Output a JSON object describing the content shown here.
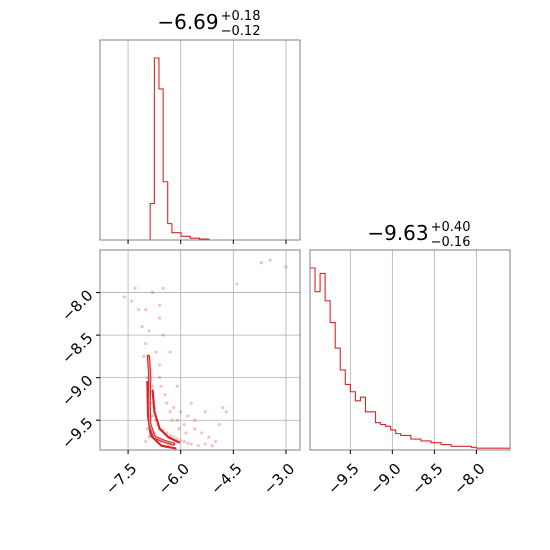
{
  "chart_data": [
    {
      "type": "histogram",
      "panel": "top-left",
      "title_main": "−6.69",
      "title_sup": "+0.18",
      "title_sub": "−0.12",
      "color": "#d62728",
      "xlim": [
        -8.3,
        -2.6
      ],
      "grid": true,
      "xticks": [
        -7.5,
        -6.0,
        -4.5,
        -3.0
      ],
      "bin_edges": [
        -8.3,
        -7.45,
        -7.0,
        -6.87,
        -6.75,
        -6.62,
        -6.5,
        -6.37,
        -6.25,
        -6.12,
        -5.99,
        -5.86,
        -5.73,
        -5.6,
        -5.47,
        -5.34,
        -5.2,
        -2.6
      ],
      "counts": [
        0,
        0,
        0,
        0.2,
        1.0,
        0.83,
        0.32,
        0.09,
        0.04,
        0.04,
        0.02,
        0.02,
        0.01,
        0.01,
        0.005,
        0.005,
        0
      ]
    },
    {
      "type": "histogram",
      "panel": "bottom-right",
      "title_main": "−9.63",
      "title_sup": "+0.40",
      "title_sub": "−0.16",
      "color": "#d62728",
      "xlim": [
        -9.98,
        -7.6
      ],
      "grid": true,
      "xticks": [
        -9.5,
        -9.0,
        -8.5,
        -8.0
      ],
      "xticklabels": [
        "−9.5",
        "−9.0",
        "−8.5",
        "−8.0"
      ],
      "bin_edges": [
        -9.98,
        -9.92,
        -9.86,
        -9.8,
        -9.74,
        -9.68,
        -9.62,
        -9.56,
        -9.5,
        -9.44,
        -9.38,
        -9.32,
        -9.26,
        -9.2,
        -9.14,
        -9.08,
        -9.02,
        -8.96,
        -8.9,
        -8.84,
        -8.78,
        -8.72,
        -8.66,
        -8.6,
        -8.54,
        -8.48,
        -8.42,
        -8.36,
        -8.3,
        -8.24,
        -8.18,
        -8.12,
        -8.06,
        -8.0,
        -7.9,
        -7.8,
        -7.7,
        -7.6
      ],
      "counts": [
        1.0,
        0.87,
        0.97,
        0.82,
        0.7,
        0.56,
        0.44,
        0.36,
        0.32,
        0.27,
        0.29,
        0.21,
        0.21,
        0.15,
        0.14,
        0.13,
        0.11,
        0.09,
        0.08,
        0.08,
        0.06,
        0.06,
        0.05,
        0.05,
        0.04,
        0.04,
        0.03,
        0.03,
        0.02,
        0.02,
        0.02,
        0.02,
        0.015,
        0.01,
        0.01,
        0.01,
        0.01
      ]
    },
    {
      "type": "scatter",
      "panel": "bottom-left",
      "color": "#d62728",
      "xlim": [
        -8.3,
        -2.6
      ],
      "ylim": [
        -9.85,
        -7.5
      ],
      "grid": true,
      "xticks": [
        -7.5,
        -6.0,
        -4.5,
        -3.0
      ],
      "xticklabels": [
        "−7.5",
        "−6.0",
        "−4.5",
        "−3.0"
      ],
      "yticks": [
        -8.0,
        -8.5,
        -9.0,
        -9.5
      ],
      "yticklabels": [
        "−8.0",
        "−8.5",
        "−9.0",
        "−9.5"
      ],
      "points": [
        [
          -6.9,
          -8.8
        ],
        [
          -6.85,
          -8.9
        ],
        [
          -6.95,
          -9.0
        ],
        [
          -6.8,
          -9.1
        ],
        [
          -6.9,
          -9.2
        ],
        [
          -6.85,
          -9.3
        ],
        [
          -6.75,
          -9.35
        ],
        [
          -6.8,
          -9.45
        ],
        [
          -6.7,
          -9.5
        ],
        [
          -6.65,
          -9.55
        ],
        [
          -6.6,
          -9.6
        ],
        [
          -6.5,
          -9.62
        ],
        [
          -6.4,
          -9.65
        ],
        [
          -6.3,
          -9.68
        ],
        [
          -6.2,
          -9.7
        ],
        [
          -6.1,
          -9.72
        ],
        [
          -6.0,
          -9.74
        ],
        [
          -5.9,
          -9.75
        ],
        [
          -5.8,
          -9.77
        ],
        [
          -5.7,
          -9.78
        ],
        [
          -7.0,
          -8.6
        ],
        [
          -7.1,
          -8.4
        ],
        [
          -7.2,
          -8.2
        ],
        [
          -6.6,
          -8.3
        ],
        [
          -6.5,
          -8.5
        ],
        [
          -6.7,
          -8.7
        ],
        [
          -6.6,
          -9.0
        ],
        [
          -6.45,
          -9.2
        ],
        [
          -6.3,
          -9.4
        ],
        [
          -6.1,
          -9.5
        ],
        [
          -5.9,
          -9.55
        ],
        [
          -5.6,
          -9.6
        ],
        [
          -5.4,
          -9.65
        ],
        [
          -5.2,
          -9.7
        ],
        [
          -5.0,
          -9.75
        ],
        [
          -4.8,
          -9.35
        ],
        [
          -4.7,
          -9.4
        ],
        [
          -6.95,
          -9.6
        ],
        [
          -6.9,
          -9.7
        ],
        [
          -7.0,
          -9.75
        ],
        [
          -6.75,
          -9.65
        ],
        [
          -6.55,
          -9.75
        ],
        [
          -6.35,
          -9.8
        ],
        [
          -6.25,
          -9.5
        ],
        [
          -6.05,
          -9.6
        ],
        [
          -5.85,
          -9.65
        ],
        [
          -5.5,
          -9.8
        ],
        [
          -5.3,
          -9.78
        ],
        [
          -5.1,
          -9.8
        ],
        [
          -7.4,
          -8.1
        ],
        [
          -7.6,
          -8.05
        ],
        [
          -7.3,
          -7.95
        ],
        [
          -6.8,
          -8.0
        ],
        [
          -6.5,
          -7.95
        ],
        [
          -7.0,
          -8.2
        ],
        [
          -6.9,
          -8.45
        ],
        [
          -7.05,
          -8.75
        ],
        [
          -6.6,
          -8.85
        ],
        [
          -6.55,
          -9.1
        ],
        [
          -6.4,
          -9.3
        ],
        [
          -6.2,
          -9.35
        ],
        [
          -6.0,
          -9.4
        ],
        [
          -5.8,
          -9.45
        ],
        [
          -5.6,
          -9.5
        ],
        [
          -3.7,
          -7.65
        ],
        [
          -3.45,
          -7.62
        ],
        [
          -3.0,
          -7.7
        ],
        [
          -4.4,
          -7.9
        ],
        [
          -6.6,
          -8.15
        ],
        [
          -6.3,
          -8.7
        ],
        [
          -6.1,
          -9.1
        ],
        [
          -5.7,
          -9.3
        ],
        [
          -5.3,
          -9.4
        ],
        [
          -4.9,
          -9.55
        ]
      ],
      "contour_paths": [
        [
          [
            -6.92,
            -8.75
          ],
          [
            -6.88,
            -9.0
          ],
          [
            -6.9,
            -9.3
          ],
          [
            -6.88,
            -9.55
          ],
          [
            -6.75,
            -9.7
          ],
          [
            -6.45,
            -9.75
          ],
          [
            -6.2,
            -9.78
          ]
        ],
        [
          [
            -6.8,
            -9.15
          ],
          [
            -6.75,
            -9.4
          ],
          [
            -6.6,
            -9.6
          ],
          [
            -6.35,
            -9.7
          ],
          [
            -6.05,
            -9.76
          ]
        ],
        [
          [
            -6.95,
            -9.05
          ],
          [
            -6.93,
            -9.45
          ],
          [
            -6.85,
            -9.68
          ],
          [
            -6.55,
            -9.8
          ],
          [
            -6.15,
            -9.83
          ]
        ]
      ]
    }
  ]
}
